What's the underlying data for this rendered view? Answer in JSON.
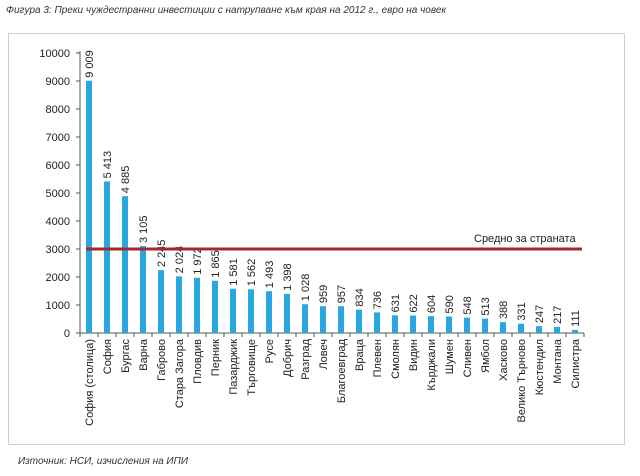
{
  "figure": {
    "caption": "Фигура 3: Преки чуждестранни инвестиции с натрупване към края на 2012 г., евро на човек",
    "source": "Източник: НСИ, изчисления на ИПИ"
  },
  "colors": {
    "bar": "#29a8e0",
    "average_line": "#a42a2a",
    "text": "#222222",
    "frame": "#cfcfcf"
  },
  "chart_data": {
    "type": "bar",
    "title": "Фигура 3: Преки чуждестранни инвестиции с натрупване към края на 2012 г., евро на човек",
    "xlabel": "",
    "ylabel": "",
    "ylim": [
      0,
      10000
    ],
    "yticks": [
      0,
      1000,
      2000,
      3000,
      4000,
      5000,
      6000,
      7000,
      8000,
      9000,
      10000
    ],
    "grid": false,
    "categories": [
      "София (столица)",
      "София",
      "Бургас",
      "Варна",
      "Габрово",
      "Стара Загора",
      "Пловдив",
      "Перник",
      "Пазарджик",
      "Търговище",
      "Русе",
      "Добрич",
      "Разград",
      "Ловеч",
      "Благоевград",
      "Враца",
      "Плевен",
      "Смолян",
      "Видин",
      "Кърджали",
      "Шумен",
      "Сливен",
      "Ямбол",
      "Хасково",
      "Велико Търново",
      "Кюстендил",
      "Монтана",
      "Силистра"
    ],
    "values": [
      9009,
      5413,
      4885,
      3105,
      2245,
      2024,
      1972,
      1865,
      1581,
      1562,
      1493,
      1398,
      1028,
      959,
      957,
      834,
      736,
      631,
      622,
      604,
      590,
      548,
      513,
      388,
      331,
      247,
      217,
      111
    ],
    "value_labels": [
      "9 009",
      "5 413",
      "4 885",
      "3 105",
      "2 245",
      "2 024",
      "1 972",
      "1 865",
      "1 581",
      "1 562",
      "1 493",
      "1 398",
      "1 028",
      "959",
      "957",
      "834",
      "736",
      "631",
      "622",
      "604",
      "590",
      "548",
      "513",
      "388",
      "331",
      "247",
      "217",
      "111"
    ],
    "average": {
      "label": "Средно за страната",
      "value": 3000
    }
  }
}
